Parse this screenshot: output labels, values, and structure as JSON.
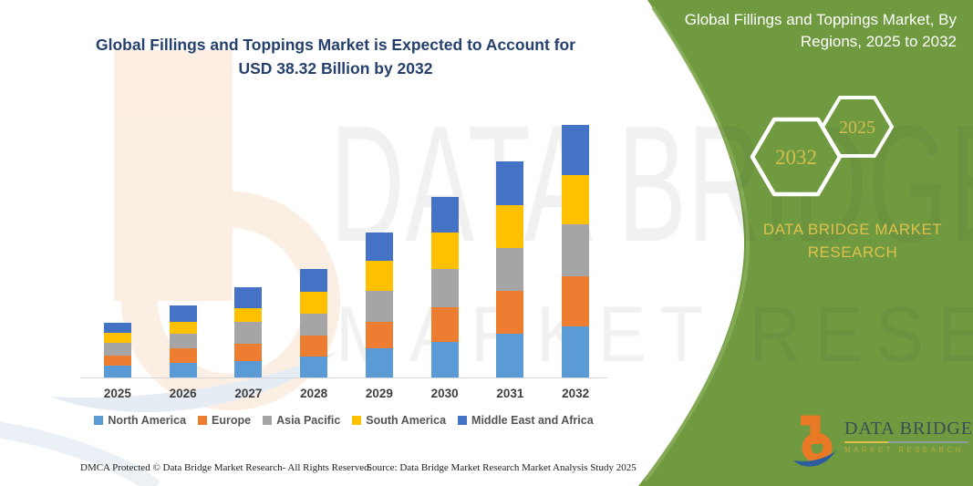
{
  "page": {
    "title_line1": "Global Fillings and Toppings Market is Expected to Account for",
    "title_line2": "USD 38.32 Billion by 2032"
  },
  "side_panel": {
    "bg_color": "#6f9a40",
    "edge_highlight_color": "#8aad5b",
    "heading_line1": "Global Fillings and Toppings Market, By",
    "heading_line2": "Regions, 2025 to 2032",
    "hexagon_back_year": "2032",
    "hexagon_front_year": "2025",
    "hexagon_text_color": "#d3bd4e",
    "brand_line1": "DATA BRIDGE MARKET",
    "brand_line2": "RESEARCH"
  },
  "watermark": {
    "line1": "DATA BRIDGE",
    "line2": "MARKET RESEARCH"
  },
  "logo": {
    "name_text": "DATA BRIDGE",
    "subtext": "MARKET RESEARCH",
    "orange": "#e87a25",
    "blue": "#2d5c9e"
  },
  "footer": {
    "dmca": "DMCA Protected © Data Bridge Market Research-  All Rights Reserved.",
    "source": "Source: Data Bridge Market Research  Market Analysis Study 2025"
  },
  "chart_data": {
    "type": "bar",
    "stacked": true,
    "unit": "USD Billion",
    "title": "Global Fillings and Toppings Market, By Regions, 2025 to 2032",
    "categories": [
      "2025",
      "2026",
      "2027",
      "2028",
      "2029",
      "2030",
      "2031",
      "2032"
    ],
    "series": [
      {
        "name": "North America",
        "color": "#5B9BD5",
        "values": [
          1.75,
          2.2,
          2.52,
          3.13,
          4.37,
          5.42,
          6.66,
          7.81
        ]
      },
      {
        "name": "Europe",
        "color": "#ED7D31",
        "values": [
          1.61,
          2.2,
          2.66,
          3.21,
          4.04,
          5.28,
          6.43,
          7.58
        ]
      },
      {
        "name": "Asia Pacific",
        "color": "#A5A5A5",
        "values": [
          1.93,
          2.3,
          3.21,
          3.35,
          4.69,
          5.75,
          6.57,
          7.81
        ]
      },
      {
        "name": "South America",
        "color": "#FFC000",
        "values": [
          1.42,
          1.7,
          2.2,
          3.31,
          4.59,
          5.51,
          6.43,
          7.48
        ]
      },
      {
        "name": "Middle East and Africa",
        "color": "#4472C4",
        "values": [
          1.56,
          2.48,
          3.07,
          3.54,
          4.27,
          5.37,
          6.75,
          7.64
        ]
      }
    ],
    "totals_by_year": [
      8.27,
      10.88,
      13.66,
      16.54,
      21.96,
      27.33,
      32.84,
      38.32
    ],
    "ylim": [
      0,
      38.32
    ],
    "grid": false,
    "legend_position": "bottom",
    "xlabel": "",
    "ylabel": ""
  }
}
